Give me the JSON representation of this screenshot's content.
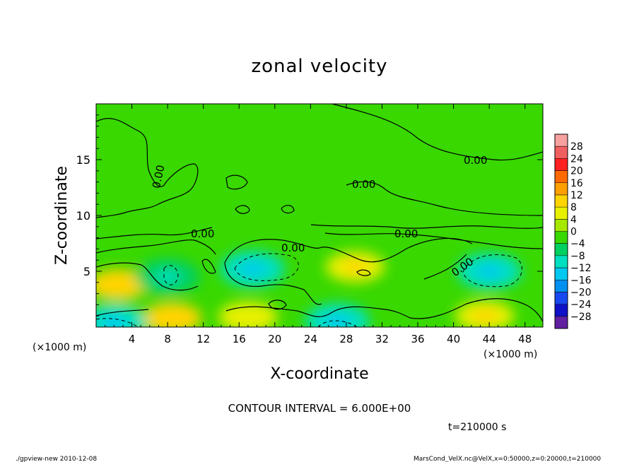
{
  "chart_data": {
    "type": "heatmap",
    "title": "zonal velocity",
    "xlabel": "X-coordinate",
    "ylabel": "Z-coordinate",
    "x_unit_label": "(×1000 m)",
    "y_unit_label": "(×1000 m)",
    "xlim": [
      0,
      50
    ],
    "ylim": [
      0,
      20
    ],
    "x_ticks": [
      4,
      8,
      12,
      16,
      20,
      24,
      28,
      32,
      36,
      40,
      44,
      48
    ],
    "y_ticks": [
      5,
      10,
      15
    ],
    "colorbar": {
      "labels": [
        "28",
        "24",
        "20",
        "16",
        "12",
        "8",
        "4",
        "0",
        "−4",
        "−8",
        "−12",
        "−16",
        "−20",
        "−24",
        "−28"
      ],
      "colors": [
        "#f7a0a0",
        "#f06060",
        "#ff2020",
        "#ff6a00",
        "#ff9f00",
        "#ffd400",
        "#e8f000",
        "#a6e800",
        "#38d800",
        "#00d060",
        "#00e0c0",
        "#00c8f0",
        "#0090f0",
        "#1848f0",
        "#1010c8",
        "#6020a0"
      ]
    },
    "contour_labels": [
      "0.00",
      "0.00",
      "0.00",
      "0.00",
      "0.00",
      "0.00",
      "0.00"
    ],
    "contour_interval_text": "CONTOUR INTERVAL = 6.000E+00",
    "time_text": "t=210000 s",
    "blobs": [
      {
        "x": 17.5,
        "z": 5.2,
        "value": -10
      },
      {
        "x": 44,
        "z": 5.0,
        "value": -11
      },
      {
        "x": 2.5,
        "z": 3.8,
        "value": 9
      },
      {
        "x": 29,
        "z": 5.4,
        "value": 8
      },
      {
        "x": 8.5,
        "z": 0.8,
        "value": 9
      },
      {
        "x": 43.5,
        "z": 1.0,
        "value": 8
      },
      {
        "x": 17,
        "z": 0.9,
        "value": 6
      },
      {
        "x": 2,
        "z": 0.4,
        "value": -10
      },
      {
        "x": 27,
        "z": 0.5,
        "value": -8
      },
      {
        "x": 8,
        "z": 4.5,
        "value": -4
      }
    ]
  },
  "footer": {
    "left": "./gpview-new   2010-12-08",
    "right": "MarsCond_VelX.nc@VelX,x=0:50000,z=0:20000,t=210000"
  }
}
